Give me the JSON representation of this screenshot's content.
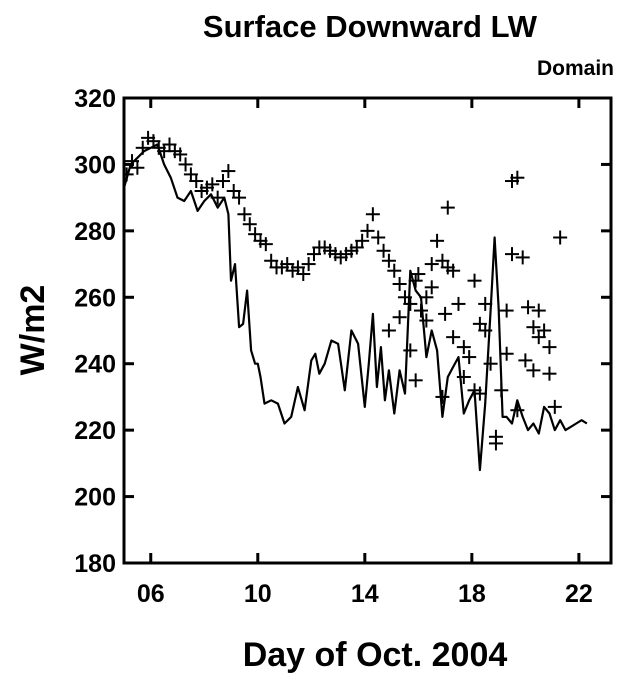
{
  "chart_data": {
    "type": "line",
    "title": "Surface Downward LW",
    "subtitle": "Domain",
    "xlabel": "Day of Oct. 2004",
    "ylabel": "W/m2",
    "xlim": [
      5.0,
      23.2
    ],
    "ylim": [
      180,
      320
    ],
    "x_ticks": [
      6,
      10,
      14,
      18,
      22
    ],
    "x_tick_labels": [
      "06",
      "10",
      "14",
      "18",
      "22"
    ],
    "y_ticks": [
      180,
      200,
      220,
      240,
      260,
      280,
      300,
      320
    ],
    "y_tick_labels": [
      "180",
      "200",
      "220",
      "240",
      "260",
      "280",
      "300",
      "320"
    ],
    "grid": false,
    "series": [
      {
        "style": "line",
        "x": [
          5.0,
          5.25,
          5.5,
          5.75,
          6.0,
          6.25,
          6.5,
          6.75,
          7.0,
          7.25,
          7.5,
          7.75,
          8.0,
          8.25,
          8.5,
          8.75,
          8.9,
          9.0,
          9.15,
          9.3,
          9.45,
          9.6,
          9.75,
          9.9,
          10.0,
          10.1,
          10.25,
          10.5,
          10.75,
          11.0,
          11.25,
          11.5,
          11.75,
          12.0,
          12.15,
          12.3,
          12.5,
          12.75,
          13.0,
          13.25,
          13.5,
          13.75,
          14.0,
          14.15,
          14.3,
          14.45,
          14.6,
          14.75,
          14.9,
          15.1,
          15.3,
          15.5,
          15.7,
          15.9,
          16.1,
          16.3,
          16.5,
          16.7,
          16.9,
          17.1,
          17.3,
          17.5,
          17.7,
          17.9,
          18.1,
          18.3,
          18.5,
          18.7,
          18.85,
          19.0,
          19.15,
          19.3,
          19.5,
          19.7,
          19.9,
          20.1,
          20.3,
          20.5,
          20.7,
          20.9,
          21.1,
          21.3,
          21.5,
          21.7,
          21.9,
          22.1,
          22.3
        ],
        "y": [
          293,
          300,
          302,
          304,
          305,
          306,
          300,
          296,
          290,
          289,
          292,
          286,
          289,
          291,
          287,
          290,
          285,
          265,
          270,
          251,
          252,
          262,
          244,
          240,
          240,
          236,
          228,
          229,
          228,
          222,
          224,
          233,
          226,
          241,
          243,
          237,
          240,
          247,
          246,
          232,
          250,
          246,
          227,
          240,
          255,
          233,
          245,
          229,
          238,
          225,
          238,
          231,
          268,
          262,
          260,
          242,
          250,
          244,
          224,
          236,
          239,
          242,
          225,
          229,
          232,
          208,
          228,
          256,
          278,
          257,
          224,
          224,
          222,
          229,
          224,
          220,
          222,
          219,
          227,
          225,
          220,
          223,
          220,
          221,
          222,
          223,
          222
        ]
      },
      {
        "style": "markers",
        "marker": "+",
        "x": [
          5.1,
          5.3,
          5.5,
          5.7,
          5.9,
          6.1,
          6.3,
          6.5,
          6.7,
          6.9,
          7.1,
          7.3,
          7.5,
          7.7,
          7.9,
          8.1,
          8.3,
          8.5,
          8.7,
          8.9,
          9.1,
          9.3,
          9.5,
          9.7,
          9.9,
          10.1,
          10.3,
          10.5,
          10.7,
          10.9,
          11.1,
          11.3,
          11.5,
          11.7,
          11.9,
          12.1,
          12.3,
          12.5,
          12.7,
          12.9,
          13.1,
          13.3,
          13.5,
          13.7,
          13.9,
          14.1,
          14.3,
          14.5,
          14.7,
          14.9,
          15.1,
          15.3,
          15.5,
          15.7,
          15.9,
          16.1,
          16.3,
          16.5,
          16.7,
          16.9,
          17.1,
          17.3,
          17.5,
          17.7,
          17.9,
          18.1,
          18.3,
          18.5,
          18.7,
          18.9,
          19.1,
          19.3,
          19.5,
          19.7,
          19.9,
          20.1,
          20.3,
          20.5,
          20.7,
          20.9,
          21.1,
          21.3,
          15.9,
          16.5,
          17.1,
          17.7,
          18.3,
          18.9,
          19.5,
          20.3,
          20.9,
          16.3,
          17.3,
          18.1,
          19.7,
          20.5,
          15.7,
          16.9,
          14.9,
          15.3,
          16.0,
          17.0,
          18.5,
          19.3,
          20.0
        ],
        "y": [
          297,
          301,
          299,
          305,
          308,
          307,
          305,
          304,
          306,
          304,
          303,
          300,
          297,
          295,
          292,
          293,
          294,
          290,
          295,
          298,
          292,
          290,
          285,
          282,
          279,
          277,
          276,
          271,
          269,
          269,
          270,
          268,
          269,
          267,
          270,
          273,
          275,
          275,
          274,
          273,
          272,
          273,
          274,
          275,
          277,
          280,
          285,
          278,
          274,
          271,
          268,
          264,
          260,
          258,
          265,
          256,
          260,
          270,
          277,
          271,
          287,
          268,
          258,
          245,
          242,
          265,
          252,
          250,
          240,
          216,
          232,
          256,
          295,
          296,
          272,
          257,
          251,
          256,
          250,
          237,
          227,
          278,
          235,
          263,
          269,
          236,
          231,
          218,
          273,
          238,
          245,
          253,
          248,
          232,
          226,
          248,
          244,
          230,
          250,
          254,
          267,
          255,
          258,
          243,
          241
        ]
      }
    ]
  }
}
